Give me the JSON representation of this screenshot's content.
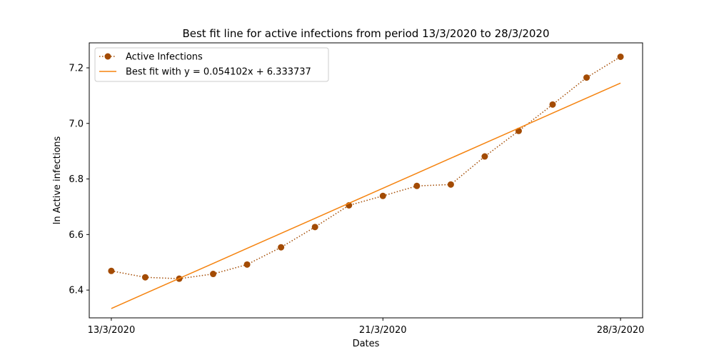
{
  "chart_data": {
    "type": "line",
    "title": "Best fit line for active infections from period 13/3/2020 to 28/3/2020",
    "xlabel": "Dates",
    "ylabel": "ln Active infections",
    "x": [
      "2020-03-13",
      "2020-03-14",
      "2020-03-15",
      "2020-03-16",
      "2020-03-17",
      "2020-03-18",
      "2020-03-19",
      "2020-03-20",
      "2020-03-21",
      "2020-03-22",
      "2020-03-23",
      "2020-03-24",
      "2020-03-25",
      "2020-03-26",
      "2020-03-27",
      "2020-03-28"
    ],
    "xticks": [
      "13/3/2020",
      "21/3/2020",
      "28/3/2020"
    ],
    "xtick_dates": [
      "2020-03-13",
      "2020-03-21",
      "2020-03-28"
    ],
    "xlim": [
      "2020-03-12T08:24",
      "2020-03-28T15:36"
    ],
    "ylim": [
      6.3,
      7.29
    ],
    "yticks": [
      6.4,
      6.6,
      6.8,
      7.0,
      7.2
    ],
    "series": [
      {
        "name": "Active Infections",
        "style": "dotted-markers",
        "color": "#a34b03",
        "values": [
          6.469,
          6.446,
          6.441,
          6.458,
          6.492,
          6.554,
          6.627,
          6.705,
          6.739,
          6.775,
          6.78,
          6.881,
          6.973,
          7.068,
          7.165,
          7.24
        ]
      },
      {
        "name": "Best fit with y = 0.054102x + 6.333737",
        "style": "solid",
        "color": "#f5830f",
        "values": [
          6.333737,
          6.387839,
          6.441941,
          6.496043,
          6.550145,
          6.604247,
          6.658349,
          6.712451,
          6.766553,
          6.820655,
          6.874757,
          6.928859,
          6.982961,
          7.037063,
          7.091165,
          7.145267
        ]
      }
    ],
    "legend": "top-left",
    "grid": false
  }
}
